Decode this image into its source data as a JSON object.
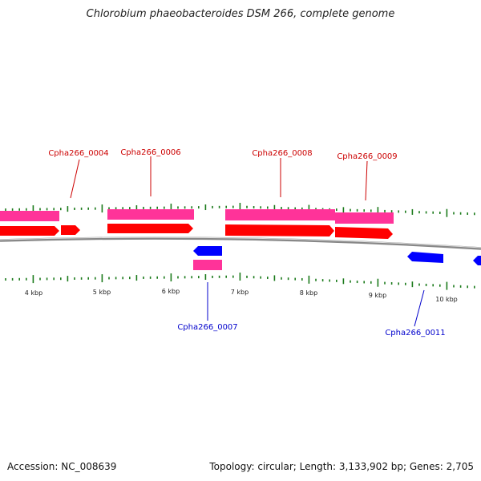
{
  "title": "Chlorobium phaeobacteroides DSM 266, complete genome",
  "footer": {
    "accession": "Accession: NC_008639",
    "summary": "Topology: circular; Length: 3,133,902 bp; Genes: 2,705"
  },
  "colors": {
    "cds_forward": "#ff0000",
    "cds_reverse": "#0000ff",
    "gene_track": "#ff3399",
    "tick": "#1a7a1a",
    "backbone": "#888888",
    "label_forward": "#cc0000",
    "label_reverse": "#0000cc"
  },
  "tick_labels": [
    "4 kbp",
    "5 kbp",
    "6 kbp",
    "7 kbp",
    "8 kbp",
    "9 kbp",
    "10 kbp"
  ],
  "gene_labels": {
    "forward": [
      "Cpha266_0004",
      "Cpha266_0006",
      "Cpha266_0008",
      "Cpha266_0009"
    ],
    "reverse": [
      "Cpha266_0007",
      "Cpha266_0011"
    ]
  }
}
